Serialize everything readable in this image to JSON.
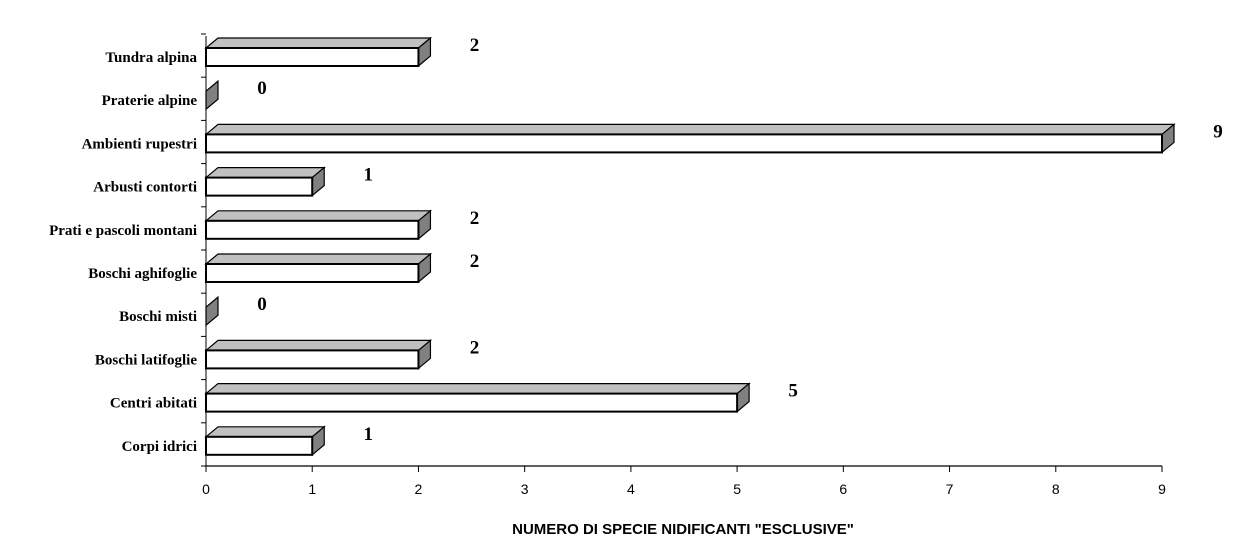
{
  "chart_data": {
    "type": "bar",
    "orientation": "horizontal",
    "categories": [
      "Tundra alpina",
      "Praterie alpine",
      "Ambienti rupestri",
      "Arbusti contorti",
      "Prati e pascoli montani",
      "Boschi aghifoglie",
      "Boschi misti",
      "Boschi latifoglie",
      "Centri abitati",
      "Corpi idrici"
    ],
    "values": [
      2,
      0,
      9,
      1,
      2,
      2,
      0,
      2,
      5,
      1
    ],
    "data_labels": [
      "2",
      "0",
      "9",
      "1",
      "2",
      "2",
      "0",
      "2",
      "5",
      "1"
    ],
    "xlim": [
      0,
      9
    ],
    "xticks": [
      "0",
      "1",
      "2",
      "3",
      "4",
      "5",
      "6",
      "7",
      "8",
      "9"
    ],
    "xlabel": "NUMERO DI SPECIE NIDIFICANTI \"ESCLUSIVE\"",
    "ylabel": "",
    "title": "",
    "grid": false,
    "style": "3d-bar",
    "colors": {
      "bar_front": "#ffffff",
      "bar_top": "#c0c0c0",
      "bar_side": "#808080",
      "outline": "#000000"
    }
  }
}
